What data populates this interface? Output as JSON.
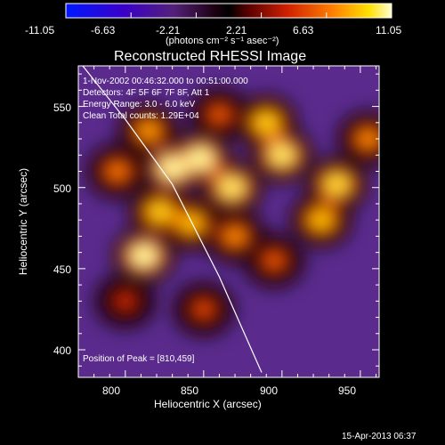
{
  "chart_data": {
    "type": "heatmap",
    "title": "Reconstructed RHESSI Image",
    "xlabel": "Heliocentric X (arcsec)",
    "ylabel": "Heliocentric Y (arcsec)",
    "xlim": [
      770,
      962
    ],
    "ylim": [
      383,
      575
    ],
    "x_ticks": [
      800,
      850,
      900,
      950
    ],
    "y_ticks": [
      400,
      450,
      500,
      550
    ],
    "colorbar": {
      "ticks": [
        "-11.05",
        "-6.63",
        "-2.21",
        "2.21",
        "6.63",
        "11.05"
      ],
      "min": -11.05,
      "max": 11.05,
      "unit_label": "(photons cm⁻² s⁻¹ asec⁻²)"
    },
    "annotations": {
      "time": "1-Nov-2002 00:46:32.000 to 00:51:00.000",
      "detectors": "Detectors: 4F 5F 6F 7F 8F, Att 1",
      "energy": "Energy Range: 3.0 - 6.0 keV",
      "method": "Clean    Total counts: 1.29E+04",
      "peak": "Position of Peak = [810,459]"
    },
    "limb": {
      "x": [
        772,
        800,
        830,
        860,
        887
      ],
      "y": [
        576,
        542,
        502,
        445,
        386
      ]
    },
    "sources": [
      {
        "x": 815,
        "y": 535,
        "value": 8.0
      },
      {
        "x": 830,
        "y": 512,
        "value": 11.05
      },
      {
        "x": 848,
        "y": 518,
        "value": 11.0
      },
      {
        "x": 868,
        "y": 500,
        "value": 10.5
      },
      {
        "x": 812,
        "y": 458,
        "value": 11.05
      },
      {
        "x": 822,
        "y": 485,
        "value": 9.5
      },
      {
        "x": 842,
        "y": 478,
        "value": 9.0
      },
      {
        "x": 870,
        "y": 470,
        "value": 7.5
      },
      {
        "x": 900,
        "y": 520,
        "value": 10.5
      },
      {
        "x": 890,
        "y": 540,
        "value": 9.5
      },
      {
        "x": 935,
        "y": 502,
        "value": 10.0
      },
      {
        "x": 925,
        "y": 480,
        "value": 9.0
      },
      {
        "x": 955,
        "y": 530,
        "value": 7.5
      },
      {
        "x": 860,
        "y": 545,
        "value": 6.0
      },
      {
        "x": 795,
        "y": 510,
        "value": 7.0
      },
      {
        "x": 850,
        "y": 425,
        "value": 5.5
      },
      {
        "x": 895,
        "y": 455,
        "value": 6.0
      },
      {
        "x": 800,
        "y": 430,
        "value": 4.5
      }
    ]
  },
  "timestamp": "15-Apr-2013 06:37"
}
